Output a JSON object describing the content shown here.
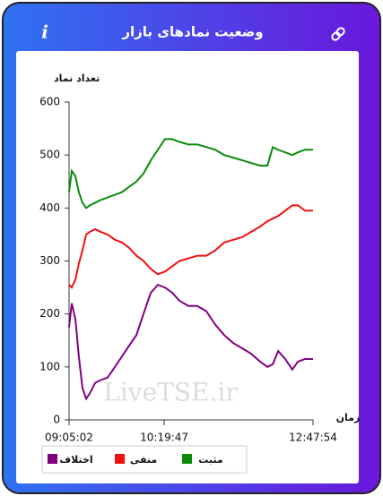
{
  "header": {
    "title": "وضعیت نمادهای بازار",
    "info_icon": "i"
  },
  "chart_data": {
    "type": "line",
    "y_label": "تعداد نماد",
    "x_label": "زمان",
    "watermark": "LiveTSE.ir",
    "x": [
      0,
      1.1,
      2.6,
      4,
      5.5,
      7,
      8.5,
      10.7,
      12.9,
      15.8,
      18.8,
      21.7,
      24.6,
      27.6,
      30.5,
      33.5,
      36.4,
      39.3,
      42.3,
      45.2,
      48.9,
      52.6,
      56.3,
      59.9,
      63.6,
      67.3,
      71,
      74.6,
      78.3,
      81.3,
      83.5,
      85.7,
      88.6,
      91.5,
      93.8,
      96.7,
      100
    ],
    "series": [
      {
        "name": "مثبت",
        "color": "#0a8a0a",
        "values": [
          430,
          470,
          460,
          430,
          410,
          400,
          405,
          410,
          415,
          420,
          425,
          430,
          440,
          450,
          465,
          490,
          510,
          530,
          530,
          525,
          520,
          520,
          515,
          510,
          500,
          495,
          490,
          485,
          480,
          480,
          515,
          510,
          505,
          500,
          505,
          510,
          510
        ]
      },
      {
        "name": "منفی",
        "color": "#f01010",
        "values": [
          255,
          250,
          265,
          295,
          320,
          350,
          355,
          360,
          355,
          350,
          340,
          335,
          325,
          310,
          300,
          285,
          275,
          280,
          290,
          300,
          305,
          310,
          310,
          320,
          335,
          340,
          345,
          355,
          365,
          375,
          380,
          385,
          395,
          405,
          405,
          395,
          395
        ]
      },
      {
        "name": "اختلاف",
        "color": "#800080",
        "values": [
          175,
          220,
          190,
          120,
          60,
          40,
          50,
          70,
          75,
          80,
          100,
          120,
          140,
          160,
          200,
          240,
          255,
          250,
          240,
          225,
          215,
          215,
          205,
          180,
          160,
          145,
          135,
          125,
          110,
          100,
          105,
          130,
          115,
          95,
          110,
          115,
          115
        ]
      }
    ],
    "xlim": [
      0,
      100
    ],
    "xticks": [
      {
        "value": 0,
        "label": "09:05:02"
      },
      {
        "value": 39,
        "label": "10:19:47"
      },
      {
        "value": 100,
        "label": "12:47:54"
      }
    ],
    "ylim": [
      0,
      600
    ],
    "yticks": [
      0,
      100,
      200,
      300,
      400,
      500,
      600
    ],
    "grid": false
  }
}
